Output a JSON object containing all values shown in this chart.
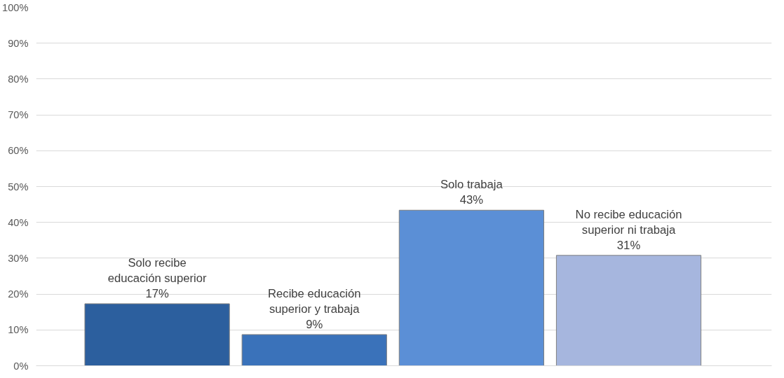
{
  "chart_data": {
    "type": "bar",
    "categories": [
      "Solo recibe educación superior",
      "Recibe educación superior y trabaja",
      "Solo trabaja",
      "No recibe educación superior ni trabaja"
    ],
    "values": [
      17.3,
      8.7,
      43.4,
      30.8
    ],
    "value_labels": [
      "17%",
      "9%",
      "43%",
      "31%"
    ],
    "colors": [
      "#2c5f9e",
      "#3a72ba",
      "#5b8fd6",
      "#a6b6de"
    ],
    "ylim": [
      0,
      100
    ],
    "yticks": [
      {
        "value": 0,
        "label": "0%"
      },
      {
        "value": 10,
        "label": "10%"
      },
      {
        "value": 20,
        "label": "20%"
      },
      {
        "value": 30,
        "label": "30%"
      },
      {
        "value": 40,
        "label": "40%"
      },
      {
        "value": 50,
        "label": "50%"
      },
      {
        "value": 60,
        "label": "60%"
      },
      {
        "value": 70,
        "label": "70%"
      },
      {
        "value": 80,
        "label": "80%"
      },
      {
        "value": 90,
        "label": "90%"
      },
      {
        "value": 100,
        "label": "100%"
      }
    ],
    "grid": "y",
    "tick_labels": "y"
  }
}
